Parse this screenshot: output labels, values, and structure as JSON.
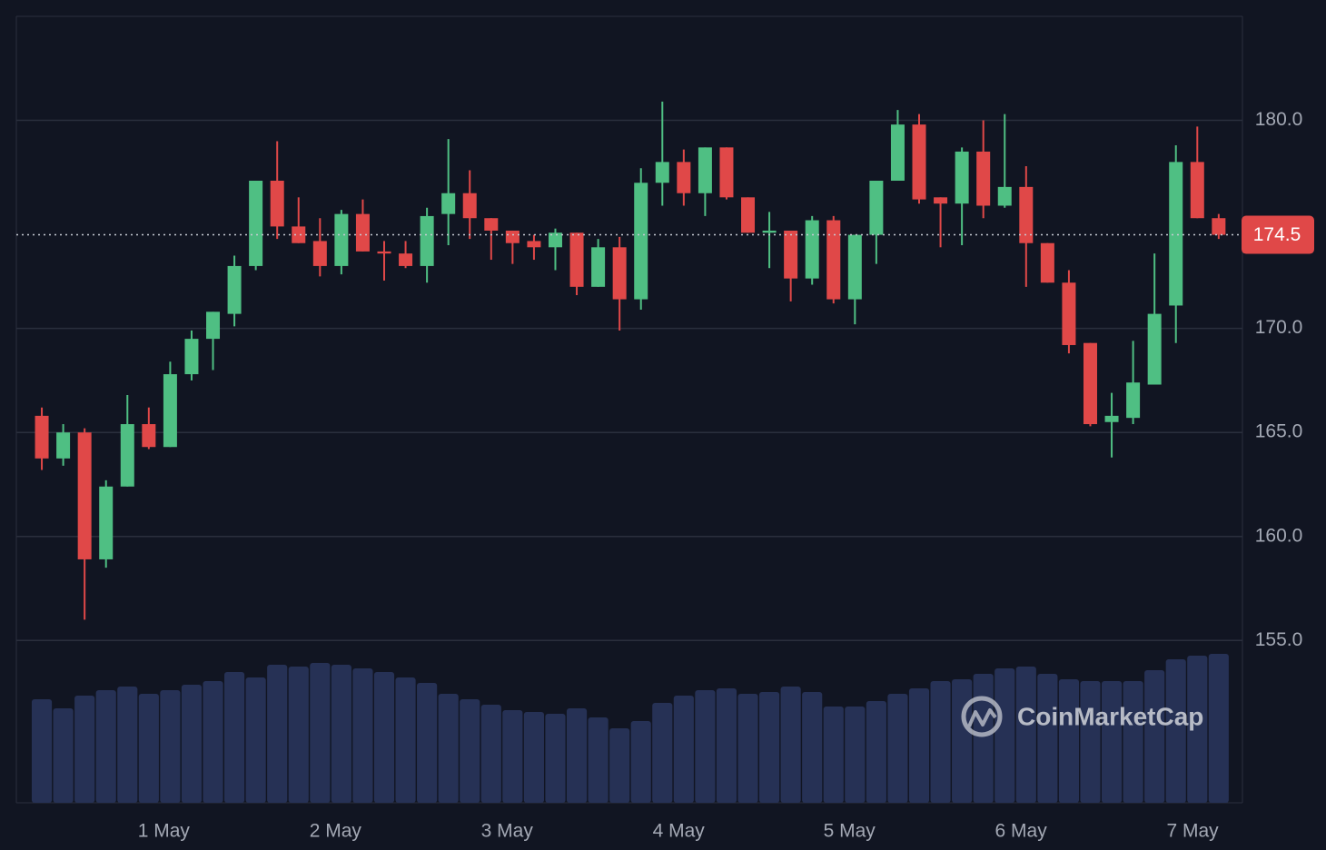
{
  "chart_data": {
    "type": "candlestick",
    "xlim": [
      -1.19,
      56.11
    ],
    "xticks": [
      {
        "value": 5.7,
        "label": "1 May"
      },
      {
        "value": 13.72,
        "label": "2 May"
      },
      {
        "value": 21.74,
        "label": "3 May"
      },
      {
        "value": 29.76,
        "label": "4 May"
      },
      {
        "value": 37.74,
        "label": "5 May"
      },
      {
        "value": 45.76,
        "label": "6 May"
      },
      {
        "value": 53.78,
        "label": "7 May"
      }
    ],
    "ylim": [
      147.2,
      185
    ],
    "yticks": [
      {
        "value": 155,
        "label": "155.0"
      },
      {
        "value": 160,
        "label": "160.0"
      },
      {
        "value": 165,
        "label": "165.0"
      },
      {
        "value": 170,
        "label": "170.0"
      },
      {
        "value": 180,
        "label": "180.0"
      }
    ],
    "grid": true,
    "up_color": "#4fbf83",
    "down_color": "#e04848",
    "volume_color": "#263155",
    "last_price": 174.5,
    "watermark": "CoinMarketCap",
    "open": [
      165.8,
      163.75,
      165.0,
      158.9,
      162.4,
      165.4,
      164.3,
      167.8,
      169.5,
      170.7,
      173.0,
      177.1,
      174.9,
      174.2,
      173.0,
      175.5,
      173.7,
      173.6,
      173.0,
      175.5,
      176.5,
      175.3,
      174.7,
      174.2,
      173.9,
      174.6,
      172.0,
      173.9,
      171.4,
      177.0,
      178.0,
      176.5,
      178.7,
      176.3,
      174.6,
      174.7,
      172.4,
      175.2,
      171.4,
      174.5,
      177.1,
      179.8,
      176.3,
      176.0,
      178.5,
      175.9,
      176.8,
      174.1,
      172.2,
      169.3,
      165.5,
      165.7,
      167.3,
      171.1,
      178.0,
      175.3
    ],
    "high": [
      166.2,
      165.4,
      165.2,
      162.7,
      166.8,
      166.2,
      168.4,
      169.9,
      170.8,
      173.5,
      177.1,
      179.0,
      176.3,
      175.3,
      175.7,
      176.2,
      174.2,
      174.2,
      175.8,
      179.1,
      177.6,
      175.3,
      174.7,
      174.5,
      174.8,
      174.6,
      174.3,
      174.4,
      177.7,
      180.9,
      178.6,
      178.7,
      178.7,
      176.3,
      175.6,
      174.7,
      175.4,
      175.4,
      174.5,
      177.1,
      180.5,
      180.3,
      176.3,
      178.7,
      180.0,
      180.3,
      177.8,
      174.1,
      172.8,
      169.3,
      166.9,
      169.4,
      173.6,
      178.8,
      179.7,
      175.5
    ],
    "low": [
      163.2,
      163.4,
      156.0,
      158.5,
      162.4,
      164.2,
      164.3,
      167.5,
      168.0,
      170.1,
      172.8,
      174.3,
      174.1,
      172.5,
      172.6,
      173.7,
      172.3,
      172.9,
      172.2,
      174.0,
      174.3,
      173.3,
      173.1,
      173.3,
      172.8,
      171.6,
      172.0,
      169.9,
      170.9,
      175.9,
      175.9,
      175.4,
      176.2,
      174.6,
      172.9,
      171.3,
      172.1,
      171.2,
      170.2,
      173.1,
      177.1,
      176.0,
      173.9,
      174.0,
      175.3,
      175.8,
      172.0,
      172.2,
      168.8,
      165.3,
      163.8,
      165.4,
      167.3,
      169.3,
      175.3,
      174.3
    ],
    "close": [
      163.75,
      165.0,
      158.9,
      162.4,
      165.4,
      164.3,
      167.8,
      169.5,
      170.8,
      173.0,
      177.1,
      174.9,
      174.1,
      173.0,
      175.5,
      173.7,
      173.6,
      173.0,
      175.4,
      176.5,
      175.3,
      174.7,
      174.1,
      173.9,
      174.6,
      172.0,
      173.9,
      171.4,
      177.0,
      178.0,
      176.5,
      178.7,
      176.3,
      174.6,
      174.7,
      172.4,
      175.2,
      171.4,
      174.5,
      177.1,
      179.8,
      176.2,
      176.0,
      178.5,
      175.9,
      176.8,
      174.1,
      172.2,
      169.2,
      165.4,
      165.8,
      167.4,
      170.7,
      178.0,
      175.3,
      174.5
    ],
    "volume": [
      114,
      104,
      118,
      124,
      128,
      120,
      124,
      130,
      134,
      144,
      138,
      152,
      150,
      154,
      152,
      148,
      144,
      138,
      132,
      120,
      114,
      108,
      102,
      100,
      98,
      104,
      94,
      82,
      90,
      110,
      118,
      124,
      126,
      120,
      122,
      128,
      122,
      106,
      106,
      112,
      120,
      126,
      134,
      136,
      142,
      148,
      150,
      142,
      136,
      134,
      134,
      134,
      146,
      158,
      162,
      164
    ]
  }
}
